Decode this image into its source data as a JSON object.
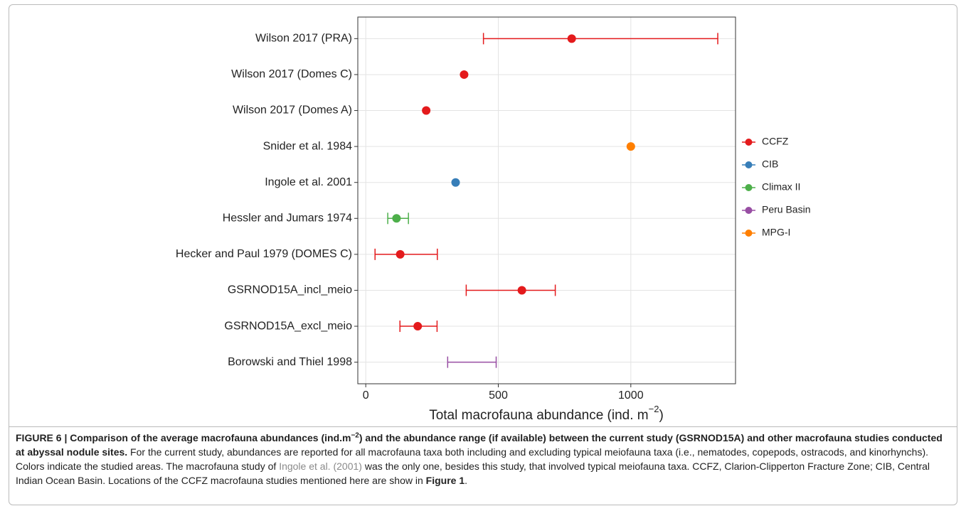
{
  "chart_data": {
    "type": "dot-range",
    "categories": [
      "Wilson 2017 (PRA)",
      "Wilson 2017 (Domes C)",
      "Wilson 2017 (Domes A)",
      "Snider et al. 1984",
      "Ingole et al. 2001",
      "Hessler and Jumars 1974",
      "Hecker and Paul 1979 (DOMES C)",
      "GSRNOD15A_incl_meio",
      "GSRNOD15A_excl_meio",
      "Borowski and Thiel 1998"
    ],
    "series": [
      {
        "name": "CCFZ",
        "color": "#e41a1c",
        "values": [
          777,
          371,
          228,
          null,
          null,
          null,
          130,
          589,
          196,
          null
        ]
      },
      {
        "name": "CIB",
        "color": "#377eb8",
        "values": [
          null,
          null,
          null,
          null,
          339,
          null,
          null,
          null,
          null,
          null
        ]
      },
      {
        "name": "Climax II",
        "color": "#4daf4a",
        "values": [
          null,
          null,
          null,
          null,
          null,
          116,
          null,
          null,
          null,
          null
        ]
      },
      {
        "name": "Peru Basin",
        "color": "#984ea3",
        "values": [
          null,
          null,
          null,
          null,
          null,
          null,
          null,
          null,
          null,
          null
        ]
      },
      {
        "name": "MPG-I",
        "color": "#ff7f00",
        "values": [
          null,
          null,
          null,
          1000,
          null,
          null,
          null,
          null,
          null,
          null
        ]
      }
    ],
    "low": [
      444,
      null,
      null,
      null,
      null,
      83,
      35,
      379,
      129,
      309
    ],
    "high": [
      1328,
      null,
      null,
      null,
      null,
      161,
      270,
      715,
      269,
      492
    ],
    "range_area": [
      "CCFZ",
      null,
      null,
      null,
      null,
      "Climax II",
      "CCFZ",
      "CCFZ",
      "CCFZ",
      "Peru Basin"
    ],
    "xlabel": [
      "Total macrofauna abundance (ind. m",
      "−2",
      ")"
    ],
    "xlim": [
      -30,
      1395
    ],
    "xticks": [
      0,
      500,
      1000
    ],
    "grid": true,
    "legend": "right"
  },
  "caption": {
    "runs": [
      {
        "style": "bold",
        "text": "FIGURE 6 | Comparison of the average macrofauna abundances (ind.m"
      },
      {
        "style": "bold-sup",
        "text": "−2"
      },
      {
        "style": "bold",
        "text": ") and the abundance range (if available) between the current study (GSRNOD15A) and other macrofauna studies conducted at abyssal nodule sites."
      },
      {
        "style": "normal",
        "text": " For the current study, abundances are reported for all macrofauna taxa both including and excluding typical meiofauna taxa (i.e., nematodes, copepods, ostracods, and kinorhynchs). Colors indicate the studied areas. The macrofauna study of "
      },
      {
        "style": "link",
        "text": "Ingole et al. (2001)"
      },
      {
        "style": "normal",
        "text": " was the only one, besides this study, that involved typical meiofauna taxa. CCFZ, Clarion-Clipperton Fracture Zone; CIB, Central Indian Ocean Basin. Locations of the CCFZ macrofauna studies mentioned here are show in "
      },
      {
        "style": "bold",
        "text": "Figure 1"
      },
      {
        "style": "normal",
        "text": "."
      }
    ]
  }
}
